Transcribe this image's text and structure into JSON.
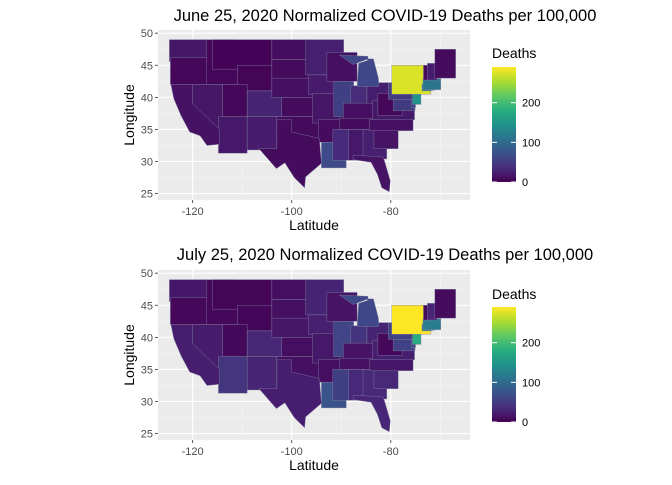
{
  "maps": [
    {
      "title": "June 25, 2020 Normalized COVID-19 Deaths per 100,000",
      "xlabel": "Latitude",
      "ylabel": "Longitude",
      "x_ticks": [
        "-120",
        "-100",
        "-80"
      ],
      "y_ticks": [
        "50",
        "45",
        "40",
        "35",
        "30",
        "25"
      ],
      "legend": {
        "title": "Deaths",
        "labels": [
          "200",
          "100",
          "0"
        ]
      },
      "state_values": {
        "WA": 17,
        "OR": 5,
        "CA": 14,
        "NV": 17,
        "ID": 5,
        "MT": 2,
        "WY": 3,
        "UT": 5,
        "AZ": 20,
        "CO": 28,
        "NM": 22,
        "ND": 10,
        "SD": 9,
        "NE": 12,
        "KS": 9,
        "OK": 9,
        "TX": 8,
        "MN": 25,
        "IA": 21,
        "MO": 17,
        "AR": 8,
        "LA": 64,
        "WI": 12,
        "IL": 54,
        "MI": 62,
        "IN": 36,
        "OH": 24,
        "KY": 11,
        "TN": 8,
        "MS": 34,
        "AL": 19,
        "GA": 25,
        "FL": 15,
        "SC": 15,
        "NC": 13,
        "VA": 19,
        "WV": 5,
        "PA": 52,
        "MD": 50,
        "DE": 53,
        "NJ": 147,
        "NY": 275,
        "CT": 120,
        "RI": 85,
        "MA": 114,
        "VT": 9,
        "NH": 24,
        "ME": 8
      }
    },
    {
      "title": "July 25, 2020 Normalized COVID-19 Deaths per 100,000",
      "xlabel": "Latitude",
      "ylabel": "Longitude",
      "x_ticks": [
        "-120",
        "-100",
        "-80"
      ],
      "y_ticks": [
        "50",
        "45",
        "40",
        "35",
        "30",
        "25"
      ],
      "legend": {
        "title": "Deaths",
        "labels": [
          "200",
          "100",
          "0"
        ]
      },
      "state_values": {
        "WA": 18,
        "OR": 6,
        "CA": 23,
        "NV": 22,
        "ID": 6,
        "MT": 3,
        "WY": 4,
        "UT": 7,
        "AZ": 45,
        "CO": 31,
        "NM": 29,
        "ND": 11,
        "SD": 12,
        "NE": 17,
        "KS": 11,
        "OK": 12,
        "TX": 24,
        "MN": 28,
        "IA": 26,
        "MO": 19,
        "AR": 11,
        "LA": 74,
        "WI": 15,
        "IL": 60,
        "MI": 63,
        "IN": 44,
        "OH": 28,
        "KY": 15,
        "TN": 13,
        "MS": 54,
        "AL": 32,
        "GA": 33,
        "FL": 30,
        "SC": 33,
        "NC": 18,
        "VA": 25,
        "WV": 6,
        "PA": 56,
        "MD": 57,
        "DE": 60,
        "NJ": 178,
        "NY": 290,
        "CT": 123,
        "RI": 95,
        "MA": 123,
        "VT": 9,
        "NH": 30,
        "ME": 9
      }
    }
  ],
  "legend_scale": {
    "min": 0,
    "max": 290,
    "ticks": [
      200,
      100,
      0
    ]
  },
  "colors": {
    "panel_background": "#ebebeb",
    "grid_major": "#ffffff",
    "state_border": "#8080a0",
    "palette": "viridis"
  }
}
